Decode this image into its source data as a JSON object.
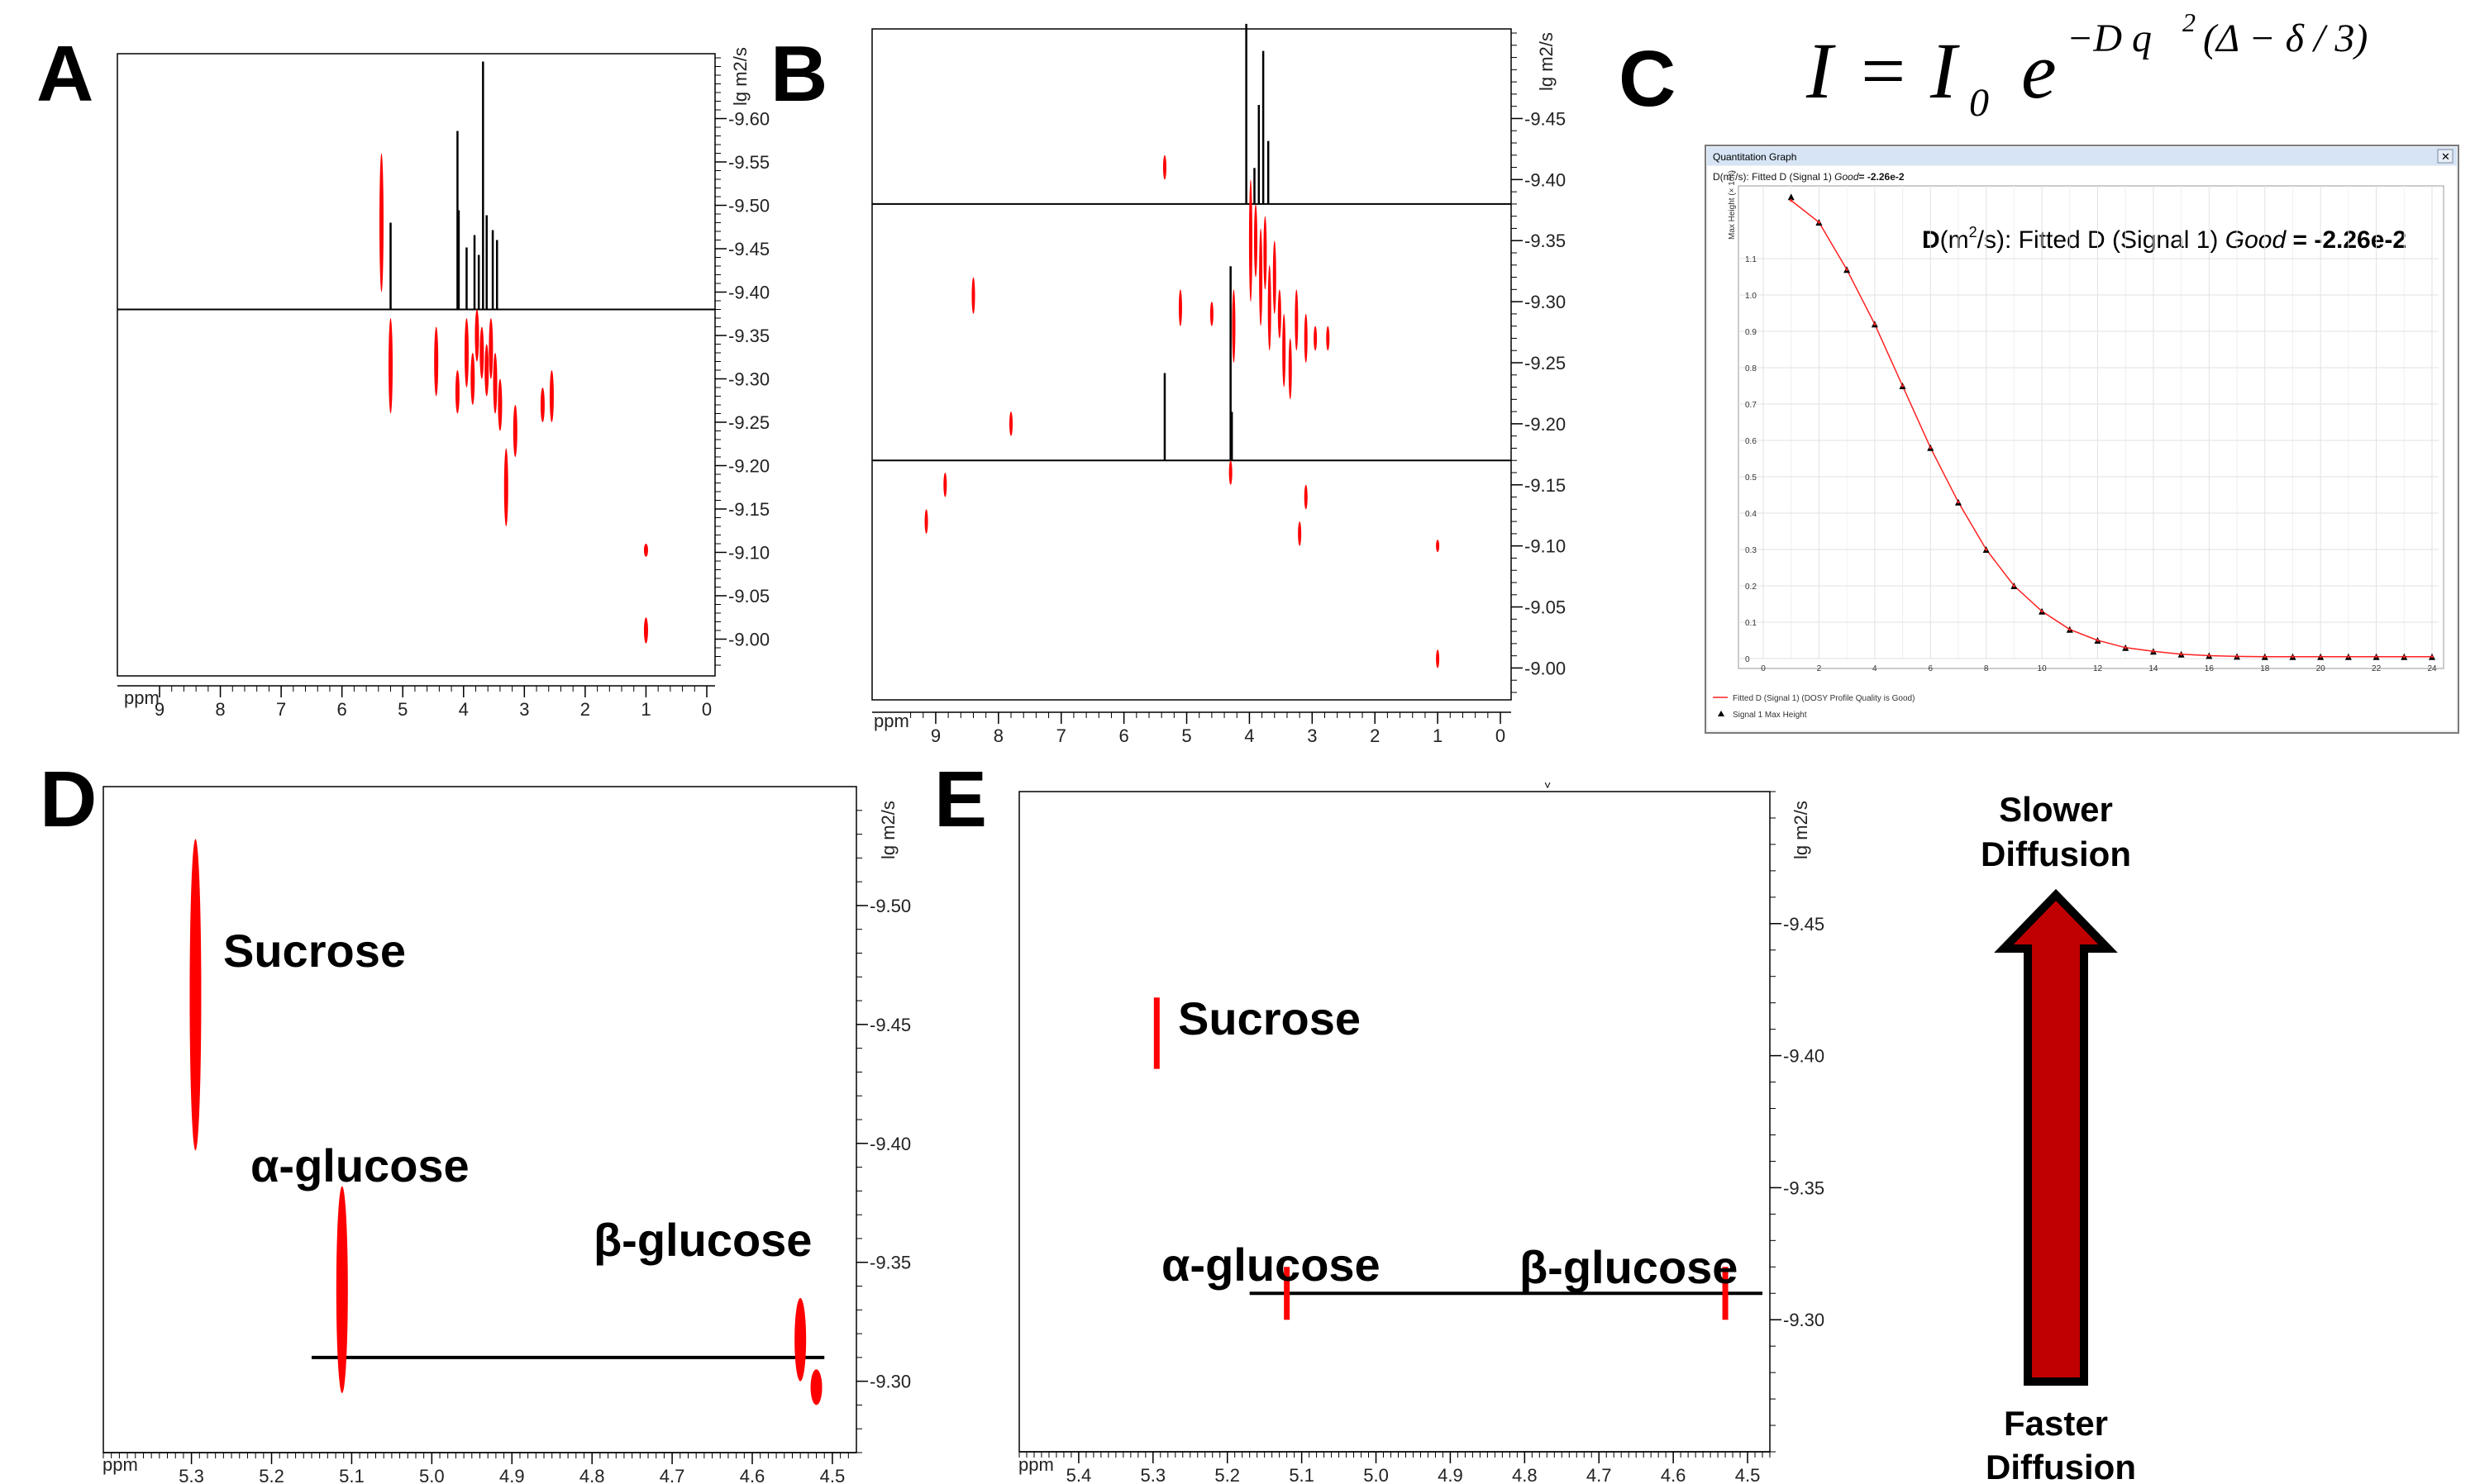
{
  "colors": {
    "peak": "#ff0000",
    "projection": "#000000",
    "axis": "#000000",
    "arrow_fill": "#c00000",
    "fit_line": "#ff2020",
    "window_title_bar": "#d6e4f5"
  },
  "panels": {
    "A": {
      "letter": "A",
      "x_unit": "ppm",
      "y_unit": "lg m2/s"
    },
    "B": {
      "letter": "B",
      "x_unit": "ppm",
      "y_unit": "lg m2/s"
    },
    "C": {
      "letter": "C"
    },
    "D": {
      "letter": "D",
      "x_unit": "ppm",
      "y_unit": "lg m2/s"
    },
    "E": {
      "letter": "E",
      "x_unit": "ppm",
      "y_unit": "lg m2/s"
    }
  },
  "formula": {
    "lhs": "I",
    "equals": "=",
    "I0_base": "I",
    "I0_sub": "0",
    "e": "e",
    "exponent_pre": "−D q",
    "exponent_sq": "2",
    "exponent_post": "(Δ − δ / 3)"
  },
  "quant_window": {
    "title": "Quantitation Graph",
    "header_pre": "D(m",
    "header_sq": "2",
    "header_post": "/s): Fitted D (Signal 1) ",
    "header_good": "Good",
    "header_value": "= -2.26e-2",
    "big_pre": "D",
    "big_unit": "(m",
    "big_sq": "2",
    "big_post": "/s): Fitted D (Signal 1) ",
    "big_good": "Good",
    "big_value": " = -2.26e-2",
    "y_title": "Max Height (× 10⁸)",
    "legend_fit": "Fitted D (Signal 1) (DOSY Profile Quality is Good)",
    "legend_points": "Signal 1 Max Height"
  },
  "labels": {
    "D_sucrose": "Sucrose",
    "D_alpha": "α-glucose",
    "D_beta": "β-glucose",
    "E_sucrose": "Sucrose",
    "E_alpha": "α-glucose",
    "E_beta": "β-glucose",
    "slower_1": "Slower",
    "slower_2": "Diffusion",
    "faster_1": "Faster",
    "faster_2": "Diffusion"
  },
  "chart_data": [
    {
      "panel": "A",
      "type": "scatter",
      "xlabel": "ppm",
      "ylabel": "lg m2/s",
      "xlim": [
        9.0,
        0.0
      ],
      "ylim": [
        -8.97,
        -9.67
      ],
      "x_ticks": [
        "9",
        "8",
        "7",
        "6",
        "5",
        "4",
        "3",
        "2",
        "1",
        "0"
      ],
      "y_ticks": [
        "-9.60",
        "-9.55",
        "-9.50",
        "-9.45",
        "-9.40",
        "-9.35",
        "-9.30",
        "-9.25",
        "-9.20",
        "-9.15",
        "-9.10",
        "-9.05",
        "-9.00"
      ],
      "y_tick_values": [
        -9.6,
        -9.55,
        -9.5,
        -9.45,
        -9.4,
        -9.35,
        -9.3,
        -9.25,
        -9.2,
        -9.15,
        -9.1,
        -9.05,
        -9.0
      ],
      "horizontal_line_y": -9.38,
      "peaks": [
        {
          "x": 5.35,
          "y1": -9.4,
          "y2": -9.56
        },
        {
          "x": 5.2,
          "y1": -9.26,
          "y2": -9.37
        },
        {
          "x": 4.45,
          "y1": -9.28,
          "y2": -9.36
        },
        {
          "x": 4.1,
          "y1": -9.26,
          "y2": -9.31
        },
        {
          "x": 3.95,
          "y1": -9.29,
          "y2": -9.37
        },
        {
          "x": 3.85,
          "y1": -9.27,
          "y2": -9.33
        },
        {
          "x": 3.78,
          "y1": -9.32,
          "y2": -9.38
        },
        {
          "x": 3.7,
          "y1": -9.3,
          "y2": -9.36
        },
        {
          "x": 3.62,
          "y1": -9.28,
          "y2": -9.34
        },
        {
          "x": 3.55,
          "y1": -9.3,
          "y2": -9.37
        },
        {
          "x": 3.48,
          "y1": -9.26,
          "y2": -9.33
        },
        {
          "x": 3.4,
          "y1": -9.24,
          "y2": -9.3
        },
        {
          "x": 3.3,
          "y1": -9.13,
          "y2": -9.22
        },
        {
          "x": 3.15,
          "y1": -9.21,
          "y2": -9.27
        },
        {
          "x": 2.7,
          "y1": -9.25,
          "y2": -9.29
        },
        {
          "x": 2.55,
          "y1": -9.25,
          "y2": -9.31
        },
        {
          "x": 1.0,
          "y1": -9.095,
          "y2": -9.11
        },
        {
          "x": 1.0,
          "y1": -8.995,
          "y2": -9.025
        }
      ],
      "projection_x": [
        {
          "x": 5.2,
          "h": 0.35
        },
        {
          "x": 4.1,
          "h": 0.72
        },
        {
          "x": 4.08,
          "h": 0.4
        },
        {
          "x": 3.95,
          "h": 0.25
        },
        {
          "x": 3.82,
          "h": 0.3
        },
        {
          "x": 3.75,
          "h": 0.22
        },
        {
          "x": 3.68,
          "h": 1.0
        },
        {
          "x": 3.62,
          "h": 0.38
        },
        {
          "x": 3.52,
          "h": 0.32
        },
        {
          "x": 3.45,
          "h": 0.28
        }
      ]
    },
    {
      "panel": "B",
      "type": "scatter",
      "xlabel": "ppm",
      "ylabel": "lg m2/s",
      "xlim": [
        9.5,
        0.0
      ],
      "ylim": [
        -8.98,
        -9.52
      ],
      "x_ticks": [
        "9",
        "8",
        "7",
        "6",
        "5",
        "4",
        "3",
        "2",
        "1",
        "0"
      ],
      "y_ticks": [
        "-9.45",
        "-9.40",
        "-9.35",
        "-9.30",
        "-9.25",
        "-9.20",
        "-9.15",
        "-9.10",
        "-9.05",
        "-9.00"
      ],
      "y_tick_values": [
        -9.45,
        -9.4,
        -9.35,
        -9.3,
        -9.25,
        -9.2,
        -9.15,
        -9.1,
        -9.05,
        -9.0
      ],
      "horizontal_lines_y": [
        -9.38,
        -9.17
      ],
      "peaks": [
        {
          "x": 5.35,
          "y1": -9.4,
          "y2": -9.42
        },
        {
          "x": 8.4,
          "y1": -9.29,
          "y2": -9.32
        },
        {
          "x": 5.1,
          "y1": -9.28,
          "y2": -9.31
        },
        {
          "x": 4.6,
          "y1": -9.28,
          "y2": -9.3
        },
        {
          "x": 4.25,
          "y1": -9.25,
          "y2": -9.31
        },
        {
          "x": 7.8,
          "y1": -9.19,
          "y2": -9.21
        },
        {
          "x": 8.85,
          "y1": -9.14,
          "y2": -9.16
        },
        {
          "x": 9.15,
          "y1": -9.11,
          "y2": -9.13
        },
        {
          "x": 3.98,
          "y1": -9.3,
          "y2": -9.4
        },
        {
          "x": 3.9,
          "y1": -9.32,
          "y2": -9.38
        },
        {
          "x": 3.82,
          "y1": -9.28,
          "y2": -9.36
        },
        {
          "x": 3.75,
          "y1": -9.31,
          "y2": -9.37
        },
        {
          "x": 3.68,
          "y1": -9.26,
          "y2": -9.33
        },
        {
          "x": 3.6,
          "y1": -9.29,
          "y2": -9.35
        },
        {
          "x": 3.52,
          "y1": -9.27,
          "y2": -9.31
        },
        {
          "x": 3.45,
          "y1": -9.23,
          "y2": -9.29
        },
        {
          "x": 3.35,
          "y1": -9.22,
          "y2": -9.27
        },
        {
          "x": 3.25,
          "y1": -9.26,
          "y2": -9.31
        },
        {
          "x": 3.1,
          "y1": -9.25,
          "y2": -9.29
        },
        {
          "x": 2.95,
          "y1": -9.26,
          "y2": -9.28
        },
        {
          "x": 2.75,
          "y1": -9.26,
          "y2": -9.28
        },
        {
          "x": 3.1,
          "y1": -9.13,
          "y2": -9.15
        },
        {
          "x": 3.2,
          "y1": -9.1,
          "y2": -9.12
        },
        {
          "x": 4.3,
          "y1": -9.15,
          "y2": -9.17
        },
        {
          "x": 1.0,
          "y1": -9.095,
          "y2": -9.105
        },
        {
          "x": 1.0,
          "y1": -9.0,
          "y2": -9.015
        }
      ],
      "projection_x": [
        {
          "x": 4.05,
          "h": 1.0
        },
        {
          "x": 3.92,
          "h": 0.2
        },
        {
          "x": 3.85,
          "h": 0.55
        },
        {
          "x": 3.78,
          "h": 0.85
        },
        {
          "x": 3.7,
          "h": 0.35
        }
      ],
      "projection_low_x": [
        {
          "x": 5.35,
          "h": 0.45
        },
        {
          "x": 4.3,
          "h": 1.0
        },
        {
          "x": 4.28,
          "h": 0.25
        }
      ]
    },
    {
      "panel": "C",
      "type": "line",
      "xlabel": "",
      "ylabel": "Max Height (× 10⁸)",
      "xlim": [
        0,
        24
      ],
      "ylim": [
        0,
        1.3
      ],
      "x_ticks": [
        "0",
        "2",
        "4",
        "6",
        "8",
        "10",
        "12",
        "14",
        "16",
        "18",
        "20",
        "22",
        "24"
      ],
      "y_ticks": [
        "0",
        "0.1",
        "0.2",
        "0.3",
        "0.4",
        "0.5",
        "0.6",
        "0.7",
        "0.8",
        "0.9",
        "1.0",
        "1.1"
      ],
      "y_tick_values": [
        0,
        0.1,
        0.2,
        0.3,
        0.4,
        0.5,
        0.6,
        0.7,
        0.8,
        0.9,
        1.0,
        1.1
      ],
      "x": [
        1,
        2,
        3,
        4,
        5,
        6,
        7,
        8,
        9,
        10,
        11,
        12,
        13,
        14,
        15,
        16,
        17,
        18,
        19,
        20,
        21,
        22,
        23,
        24
      ],
      "series": [
        {
          "name": "Fitted D (Signal 1) (DOSY Profile Quality is Good)",
          "values": [
            1.26,
            1.2,
            1.07,
            0.92,
            0.75,
            0.58,
            0.43,
            0.3,
            0.2,
            0.13,
            0.08,
            0.05,
            0.03,
            0.02,
            0.012,
            0.008,
            0.006,
            0.005,
            0.005,
            0.005,
            0.005,
            0.005,
            0.005,
            0.005
          ]
        },
        {
          "name": "Signal 1 Max Height",
          "values": [
            1.27,
            1.2,
            1.07,
            0.92,
            0.75,
            0.58,
            0.43,
            0.3,
            0.2,
            0.13,
            0.08,
            0.05,
            0.03,
            0.02,
            0.012,
            0.008,
            0.006,
            0.005,
            0.005,
            0.005,
            0.005,
            0.005,
            0.005,
            0.005
          ]
        }
      ]
    },
    {
      "panel": "D",
      "type": "scatter",
      "xlabel": "ppm",
      "ylabel": "lg m2/s",
      "xlim": [
        5.41,
        4.47
      ],
      "ylim": [
        -9.27,
        -9.55
      ],
      "x_ticks": [
        "5.3",
        "5.2",
        "5.1",
        "5.0",
        "4.9",
        "4.8",
        "4.7",
        "4.6",
        "4.5"
      ],
      "x_tick_values": [
        5.3,
        5.2,
        5.1,
        5.0,
        4.9,
        4.8,
        4.7,
        4.6,
        4.5
      ],
      "y_ticks": [
        "-9.50",
        "-9.45",
        "-9.40",
        "-9.35",
        "-9.30"
      ],
      "y_tick_values": [
        -9.5,
        -9.45,
        -9.4,
        -9.35,
        -9.3
      ],
      "horizontal_line": {
        "x1": 5.15,
        "x2": 4.51,
        "y": -9.31
      },
      "peaks": [
        {
          "name": "Sucrose",
          "x": 5.295,
          "y1": -9.397,
          "y2": -9.528
        },
        {
          "name": "α-glucose",
          "x": 5.112,
          "y1": -9.295,
          "y2": -9.382
        },
        {
          "name": "β-glucose",
          "x": 4.54,
          "y1": -9.3,
          "y2": -9.335
        },
        {
          "name": "β-glucose",
          "x": 4.52,
          "y1": -9.29,
          "y2": -9.305
        }
      ]
    },
    {
      "panel": "E",
      "type": "scatter",
      "xlabel": "ppm",
      "ylabel": "lg m2/s",
      "xlim": [
        5.48,
        4.47
      ],
      "ylim": [
        -9.25,
        -9.5
      ],
      "x_ticks": [
        "5.4",
        "5.3",
        "5.2",
        "5.1",
        "5.0",
        "4.9",
        "4.8",
        "4.7",
        "4.6",
        "4.5"
      ],
      "x_tick_values": [
        5.4,
        5.3,
        5.2,
        5.1,
        5.0,
        4.9,
        4.8,
        4.7,
        4.6,
        4.5
      ],
      "y_ticks": [
        "-9.45",
        "-9.40",
        "-9.35",
        "-9.30"
      ],
      "y_tick_values": [
        -9.45,
        -9.4,
        -9.35,
        -9.3
      ],
      "horizontal_line": {
        "x1": 5.17,
        "x2": 4.48,
        "y": -9.31
      },
      "peaks": [
        {
          "name": "Sucrose",
          "x": 5.295,
          "y1": -9.395,
          "y2": -9.422
        },
        {
          "name": "α-glucose",
          "x": 5.12,
          "y1": -9.3,
          "y2": -9.32
        },
        {
          "name": "β-glucose",
          "x": 4.53,
          "y1": -9.3,
          "y2": -9.32
        }
      ]
    }
  ]
}
